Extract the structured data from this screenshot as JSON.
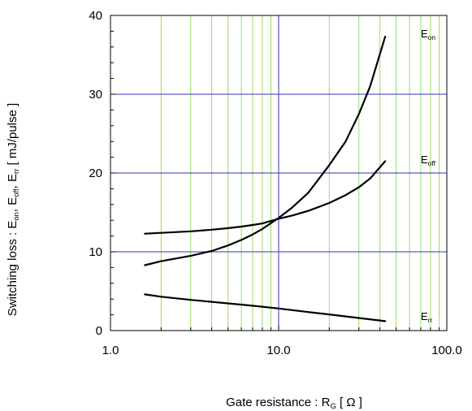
{
  "chart_data": {
    "type": "line",
    "x_scale": "log",
    "xlim": [
      1.0,
      100.0
    ],
    "ylim": [
      0,
      40
    ],
    "x_ticks": [
      "1.0",
      "10.0",
      "100.0"
    ],
    "y_ticks": [
      "0",
      "10",
      "20",
      "30",
      "40"
    ],
    "xlabel": {
      "main": "Gate resistance : R",
      "sub": "G",
      "unit": " [ Ω ]"
    },
    "ylabel": {
      "p1": "Switching loss : E",
      "s1": "on",
      "p2": ", E",
      "s2": "off",
      "p3": ", E",
      "s3": "rr",
      "p4": " [ mJ/pulse ]"
    },
    "grid": {
      "major_color": "#3333bb",
      "minor_color": "#99dd66"
    },
    "series": [
      {
        "name": "E",
        "sub": "on",
        "x": [
          1.6,
          2,
          3,
          4,
          5,
          6,
          7,
          8,
          10,
          12,
          15,
          20,
          25,
          30,
          35,
          43
        ],
        "y": [
          8.3,
          8.8,
          9.5,
          10.1,
          10.8,
          11.5,
          12.2,
          12.9,
          14.3,
          15.6,
          17.5,
          21.0,
          24.0,
          27.5,
          31.0,
          37.3
        ]
      },
      {
        "name": "E",
        "sub": "off",
        "x": [
          1.6,
          2,
          3,
          4,
          5,
          6,
          7,
          8,
          10,
          12,
          15,
          20,
          25,
          30,
          35,
          43
        ],
        "y": [
          12.3,
          12.4,
          12.6,
          12.8,
          13.0,
          13.2,
          13.4,
          13.6,
          14.2,
          14.6,
          15.2,
          16.2,
          17.2,
          18.2,
          19.3,
          21.5
        ]
      },
      {
        "name": "E",
        "sub": "rr",
        "x": [
          1.6,
          2,
          3,
          4,
          5,
          7,
          10,
          15,
          20,
          30,
          43
        ],
        "y": [
          4.6,
          4.3,
          3.9,
          3.65,
          3.45,
          3.15,
          2.8,
          2.35,
          2.05,
          1.6,
          1.2
        ]
      }
    ]
  }
}
